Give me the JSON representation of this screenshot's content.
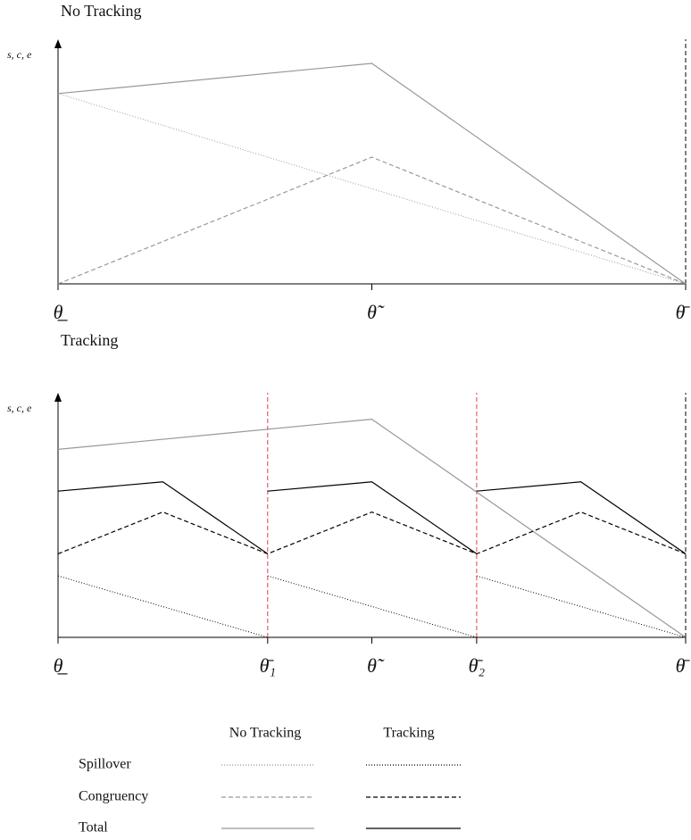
{
  "chart_data": [
    {
      "type": "line",
      "title": "No Tracking",
      "y_label": "s, c, e",
      "xlim": [
        0,
        1
      ],
      "ylim": [
        0,
        1
      ],
      "xticks": [
        {
          "value": 0,
          "label": "θ̲"
        },
        {
          "value": 0.5,
          "label": "θ̃"
        },
        {
          "value": 1,
          "label": "θ̄"
        }
      ],
      "reference_lines": [
        {
          "x": 1,
          "color": "#000000"
        }
      ],
      "series": [
        {
          "name": "Spillover",
          "color": "#999999",
          "dash": "dotted",
          "x": [
            0,
            1
          ],
          "values": [
            0.82,
            0
          ]
        },
        {
          "name": "Congruency",
          "color": "#999999",
          "dash": "dashed",
          "x": [
            0,
            0.5,
            1
          ],
          "values": [
            0,
            0.546,
            0
          ]
        },
        {
          "name": "Total",
          "color": "#999999",
          "dash": "solid",
          "x": [
            0,
            0.5,
            1
          ],
          "values": [
            0.82,
            0.95,
            0
          ]
        }
      ]
    },
    {
      "type": "line",
      "title": "Tracking",
      "y_label": "s, c, e",
      "xlim": [
        0,
        1
      ],
      "ylim": [
        0,
        1
      ],
      "xticks": [
        {
          "value": 0,
          "label": "θ̲"
        },
        {
          "value": 0.334,
          "label": "θ̄₁"
        },
        {
          "value": 0.5,
          "label": "θ̃"
        },
        {
          "value": 0.667,
          "label": "θ̄₂"
        },
        {
          "value": 1,
          "label": "θ̄"
        }
      ],
      "reference_lines": [
        {
          "x": 0.334,
          "color": "#e8384f"
        },
        {
          "x": 0.667,
          "color": "#e8384f"
        },
        {
          "x": 1,
          "color": "#000000"
        }
      ],
      "series": [
        {
          "name": "Total",
          "color": "#999999",
          "dash": "solid",
          "x": [
            0,
            0.5,
            1
          ],
          "values": [
            0.81,
            0.94,
            0
          ]
        },
        {
          "name": "Spillover",
          "color": "#000000",
          "dash": "dotted",
          "x": [
            0,
            0.334,
            null,
            0.334,
            0.667,
            null,
            0.667,
            1
          ],
          "values": [
            0.265,
            0,
            null,
            0.265,
            0,
            null,
            0.265,
            0
          ]
        },
        {
          "name": "Congruency",
          "color": "#000000",
          "dash": "dashed",
          "x": [
            0,
            0.167,
            0.334,
            0.5,
            0.667,
            0.833,
            1
          ],
          "values": [
            0.36,
            0.54,
            0.36,
            0.54,
            0.36,
            0.54,
            0.36
          ]
        },
        {
          "name": "Total",
          "color": "#000000",
          "dash": "solid",
          "x": [
            0,
            0.167,
            0.334,
            null,
            0.334,
            0.5,
            0.667,
            null,
            0.667,
            0.833,
            1
          ],
          "values": [
            0.63,
            0.67,
            0.36,
            null,
            0.63,
            0.67,
            0.36,
            null,
            0.63,
            0.67,
            0.36
          ]
        }
      ]
    }
  ]
}
